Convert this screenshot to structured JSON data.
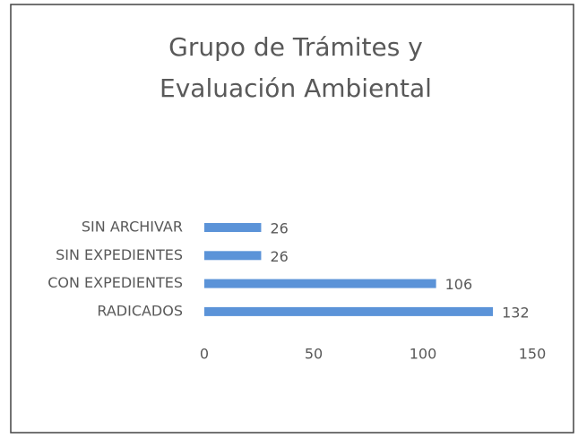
{
  "chart_data": {
    "type": "hbar",
    "title": "Grupo de Trámites y Evaluación Ambiental",
    "categories": [
      "SIN ARCHIVAR",
      "SIN EXPEDIENTES",
      "CON EXPEDIENTES",
      "RADICADOS"
    ],
    "values": [
      26,
      26,
      106,
      132
    ],
    "color": "#5b93d8",
    "xlim": [
      0,
      150
    ],
    "xticks": [
      0,
      50,
      100,
      150
    ],
    "grid": false
  }
}
